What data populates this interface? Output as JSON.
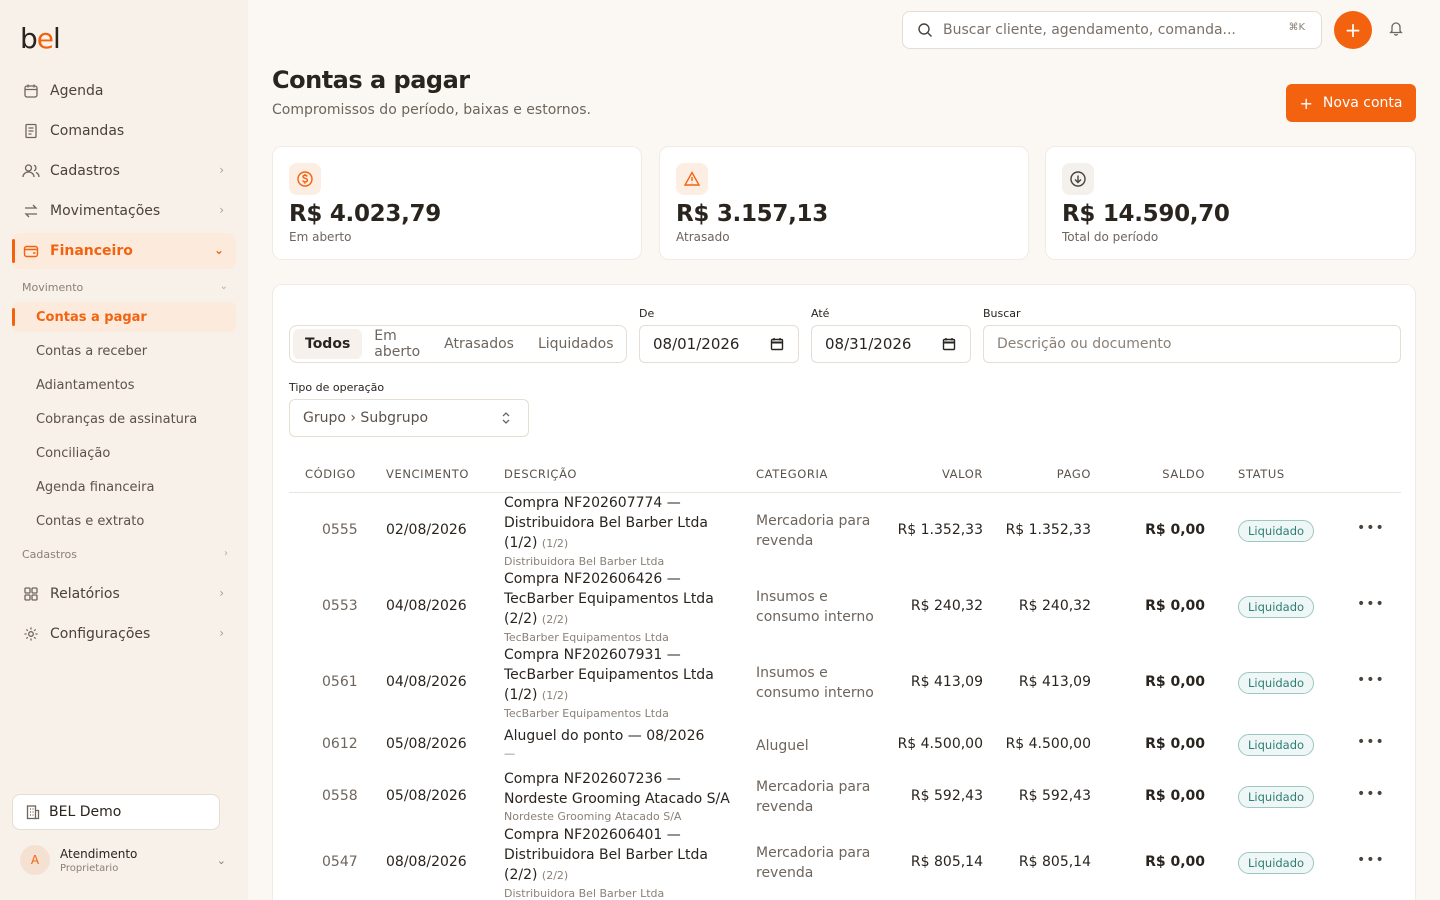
{
  "app": {
    "logo_text": "bel",
    "brand_color": "#f3620f"
  },
  "sidebar": {
    "items": [
      {
        "label": "Agenda",
        "icon": "calendar-icon"
      },
      {
        "label": "Comandas",
        "icon": "receipt-icon"
      },
      {
        "label": "Cadastros",
        "icon": "users-icon"
      },
      {
        "label": "Movimentações",
        "icon": "arrows-icon"
      },
      {
        "label": "Financeiro",
        "icon": "wallet-icon"
      }
    ],
    "section_movimento": "Movimento",
    "sub_items": [
      "Contas a pagar",
      "Contas a receber",
      "Adiantamentos",
      "Cobranças de assinatura",
      "Conciliação",
      "Agenda financeira",
      "Contas e extrato"
    ],
    "section_cadastros": "Cadastros",
    "bottom_items": [
      {
        "label": "Relatórios",
        "icon": "grid-icon"
      },
      {
        "label": "Configurações",
        "icon": "gear-icon"
      }
    ],
    "tenant": "BEL Demo",
    "user": {
      "initial": "A",
      "name": "Atendimento",
      "role": "Proprietario"
    }
  },
  "topbar": {
    "search_placeholder": "Buscar cliente, agendamento, comanda...",
    "shortcut": "⌘K"
  },
  "header": {
    "title": "Contas a pagar",
    "subtitle": "Compromissos do período, baixas e estornos.",
    "new_button": "Nova conta"
  },
  "kpis": [
    {
      "value": "R$ 4.023,79",
      "label": "Em aberto",
      "icon": "dollar-circle-icon"
    },
    {
      "value": "R$ 3.157,13",
      "label": "Atrasado",
      "icon": "warning-triangle-icon"
    },
    {
      "value": "R$ 14.590,70",
      "label": "Total do período",
      "icon": "arrow-down-circle-icon"
    }
  ],
  "filters": {
    "status_tabs": [
      "Todos",
      "Em aberto",
      "Atrasados",
      "Liquidados"
    ],
    "active_tab": "Todos",
    "from_label": "De",
    "from_value": "08/01/2026",
    "to_label": "Até",
    "to_value": "08/31/2026",
    "search_label": "Buscar",
    "search_placeholder": "Descrição ou documento",
    "op_label": "Tipo de operação",
    "op_value": "Grupo › Subgrupo"
  },
  "table": {
    "columns": [
      "CÓDIGO",
      "VENCIMENTO",
      "DESCRIÇÃO",
      "CATEGORIA",
      "VALOR",
      "PAGO",
      "SALDO",
      "STATUS"
    ],
    "rows": [
      {
        "code": "0555",
        "due": "02/08/2026",
        "desc": "Compra NF202607774 — Distribuidora Bel Barber Ltda (1/2)",
        "part": "(1/2)",
        "sub": "Distribuidora Bel Barber Ltda",
        "category": "Mercadoria para revenda",
        "value": "R$ 1.352,33",
        "paid": "R$ 1.352,33",
        "balance": "R$ 0,00",
        "status": "Liquidado"
      },
      {
        "code": "0553",
        "due": "04/08/2026",
        "desc": "Compra NF202606426 — TecBarber Equipamentos Ltda (2/2)",
        "part": "(2/2)",
        "sub": "TecBarber Equipamentos Ltda",
        "category": "Insumos e consumo interno",
        "value": "R$ 240,32",
        "paid": "R$ 240,32",
        "balance": "R$ 0,00",
        "status": "Liquidado"
      },
      {
        "code": "0561",
        "due": "04/08/2026",
        "desc": "Compra NF202607931 — TecBarber Equipamentos Ltda (1/2)",
        "part": "(1/2)",
        "sub": "TecBarber Equipamentos Ltda",
        "category": "Insumos e consumo interno",
        "value": "R$ 413,09",
        "paid": "R$ 413,09",
        "balance": "R$ 0,00",
        "status": "Liquidado"
      },
      {
        "code": "0612",
        "due": "05/08/2026",
        "desc": "Aluguel do ponto — 08/2026",
        "part": "",
        "sub": "—",
        "category": "Aluguel",
        "value": "R$ 4.500,00",
        "paid": "R$ 4.500,00",
        "balance": "R$ 0,00",
        "status": "Liquidado"
      },
      {
        "code": "0558",
        "due": "05/08/2026",
        "desc": "Compra NF202607236 — Nordeste Grooming Atacado S/A",
        "part": "",
        "sub": "Nordeste Grooming Atacado S/A",
        "category": "Mercadoria para revenda",
        "value": "R$ 592,43",
        "paid": "R$ 592,43",
        "balance": "R$ 0,00",
        "status": "Liquidado"
      },
      {
        "code": "0547",
        "due": "08/08/2026",
        "desc": "Compra NF202606401 — Distribuidora Bel Barber Ltda (2/2)",
        "part": "(2/2)",
        "sub": "Distribuidora Bel Barber Ltda",
        "category": "Mercadoria para revenda",
        "value": "R$ 805,14",
        "paid": "R$ 805,14",
        "balance": "R$ 0,00",
        "status": "Liquidado"
      }
    ]
  },
  "colors": {
    "accent": "#f3620f",
    "status_liquidado": "#2e7d76",
    "sidebar_bg": "#f8f1e9",
    "page_bg": "#fbf7f2"
  }
}
